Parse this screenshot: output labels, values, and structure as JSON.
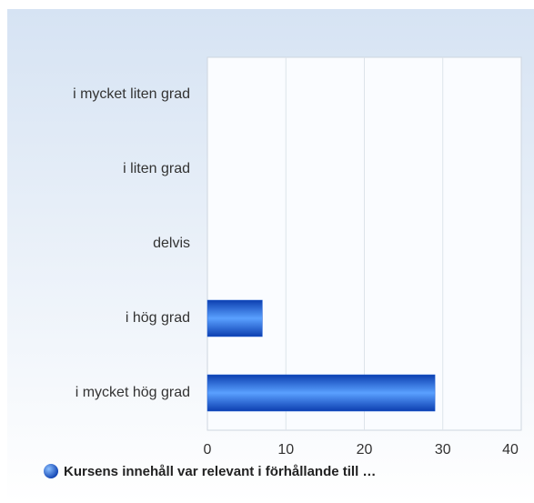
{
  "chart_data": {
    "type": "bar",
    "orientation": "horizontal",
    "categories": [
      "i mycket liten grad",
      "i liten grad",
      "delvis",
      "i hög grad",
      "i mycket hög grad"
    ],
    "series": [
      {
        "name": "Kursens innehåll var relevant i förhållande till …",
        "color": "#1f5fd6",
        "values": [
          0,
          0,
          0,
          7,
          29
        ]
      }
    ],
    "xlim": [
      0,
      40
    ],
    "xticks": [
      0,
      10,
      20,
      30,
      40
    ],
    "grid": true,
    "legend": "bottom"
  }
}
